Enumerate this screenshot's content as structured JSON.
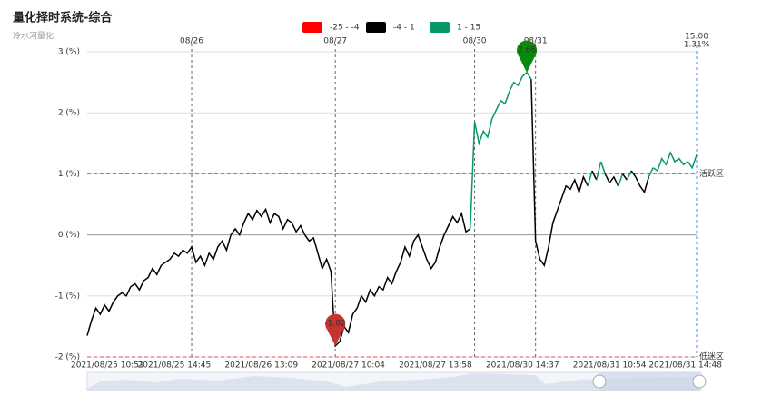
{
  "chart_data": {
    "type": "line",
    "title": "量化择时系统-综合",
    "subtitle": "冷水河量化",
    "pieces": [
      {
        "min": -25,
        "max": -4,
        "label": "-25 - -4",
        "color": "#ff0000"
      },
      {
        "min": -4,
        "max": 1,
        "label": "-4 - 1",
        "color": "#000000"
      },
      {
        "min": 1,
        "max": 15,
        "label": "1 - 15",
        "color": "#069869"
      }
    ],
    "ylim": [
      -2,
      3
    ],
    "yticks": [
      {
        "value": -2,
        "label": "-2 (%)"
      },
      {
        "value": -1,
        "label": "-1 (%)"
      },
      {
        "value": 0,
        "label": "0 (%)"
      },
      {
        "value": 1,
        "label": "1 (%)"
      },
      {
        "value": 2,
        "label": "2 (%)"
      },
      {
        "value": 3,
        "label": "3 (%)"
      }
    ],
    "grid": true,
    "categories": [
      "2021/08/25 10:51",
      null,
      null,
      null,
      null,
      null,
      null,
      null,
      null,
      null,
      null,
      null,
      null,
      null,
      null,
      null,
      null,
      null,
      null,
      null,
      "2021/08/25 14:45",
      null,
      null,
      null,
      null,
      null,
      null,
      null,
      null,
      null,
      null,
      null,
      null,
      null,
      null,
      null,
      null,
      null,
      null,
      null,
      "2021/08/26 13:09",
      null,
      null,
      null,
      null,
      null,
      null,
      null,
      null,
      null,
      null,
      null,
      null,
      null,
      null,
      null,
      null,
      null,
      null,
      null,
      "2021/08/27 10:04",
      null,
      null,
      null,
      null,
      null,
      null,
      null,
      null,
      null,
      null,
      null,
      null,
      null,
      null,
      null,
      null,
      null,
      null,
      null,
      "2021/08/27 13:58",
      null,
      null,
      null,
      null,
      null,
      null,
      null,
      null,
      null,
      null,
      null,
      null,
      null,
      null,
      null,
      null,
      null,
      null,
      null,
      "2021/08/30 14:37",
      null,
      null,
      null,
      null,
      null,
      null,
      null,
      null,
      null,
      null,
      null,
      null,
      null,
      null,
      null,
      null,
      null,
      null,
      null,
      "2021/08/31 10:54",
      null,
      null,
      null,
      null,
      null,
      null,
      null,
      null,
      null,
      null,
      null,
      null,
      null,
      null,
      null,
      null,
      null,
      null,
      null,
      "2021/08/31 14:48"
    ],
    "values": [
      -1.65,
      -1.4,
      -1.2,
      -1.3,
      -1.15,
      -1.25,
      -1.1,
      -1.0,
      -0.95,
      -1.0,
      -0.85,
      -0.8,
      -0.9,
      -0.75,
      -0.7,
      -0.55,
      -0.65,
      -0.5,
      -0.45,
      -0.4,
      -0.3,
      -0.35,
      -0.25,
      -0.3,
      -0.2,
      -0.45,
      -0.35,
      -0.5,
      -0.3,
      -0.4,
      -0.2,
      -0.1,
      -0.25,
      0.0,
      0.1,
      0.0,
      0.2,
      0.35,
      0.25,
      0.4,
      0.3,
      0.42,
      0.2,
      0.35,
      0.3,
      0.1,
      0.25,
      0.2,
      0.05,
      0.15,
      0.0,
      -0.1,
      -0.05,
      -0.3,
      -0.55,
      -0.4,
      -0.6,
      -1.82,
      -1.75,
      -1.5,
      -1.6,
      -1.3,
      -1.2,
      -1.0,
      -1.1,
      -0.9,
      -1.0,
      -0.85,
      -0.9,
      -0.7,
      -0.8,
      -0.6,
      -0.45,
      -0.2,
      -0.35,
      -0.1,
      0.0,
      -0.2,
      -0.4,
      -0.55,
      -0.45,
      -0.2,
      0.0,
      0.15,
      0.3,
      0.2,
      0.35,
      0.05,
      0.1,
      1.85,
      1.5,
      1.7,
      1.6,
      1.9,
      2.05,
      2.2,
      2.15,
      2.35,
      2.5,
      2.45,
      2.6,
      2.66,
      2.55,
      -0.1,
      -0.4,
      -0.5,
      -0.2,
      0.2,
      0.4,
      0.6,
      0.8,
      0.75,
      0.9,
      0.7,
      0.95,
      0.8,
      1.05,
      0.9,
      1.2,
      1.0,
      0.85,
      0.95,
      0.8,
      1.0,
      0.9,
      1.05,
      0.95,
      0.8,
      0.7,
      0.95,
      1.1,
      1.05,
      1.25,
      1.15,
      1.35,
      1.2,
      1.25,
      1.15,
      1.2,
      1.1,
      1.31
    ],
    "x_markers": [
      {
        "at": 24,
        "label": "08/26"
      },
      {
        "at": 57,
        "label": "08/27"
      },
      {
        "at": 89,
        "label": "08/30"
      },
      {
        "at": 103,
        "label": "08/31"
      }
    ],
    "end_marker": {
      "label": "15:00",
      "value_label": "1.31%",
      "color": "#4a90e2"
    },
    "mark_lines": [
      {
        "value": 1,
        "label": "活跃区",
        "color": "#d9534f"
      },
      {
        "value": -2,
        "label": "低迷区",
        "color": "#d9534f"
      }
    ],
    "mark_points": {
      "max_color": "#0a8a0a",
      "min_color": "#c23531"
    }
  }
}
